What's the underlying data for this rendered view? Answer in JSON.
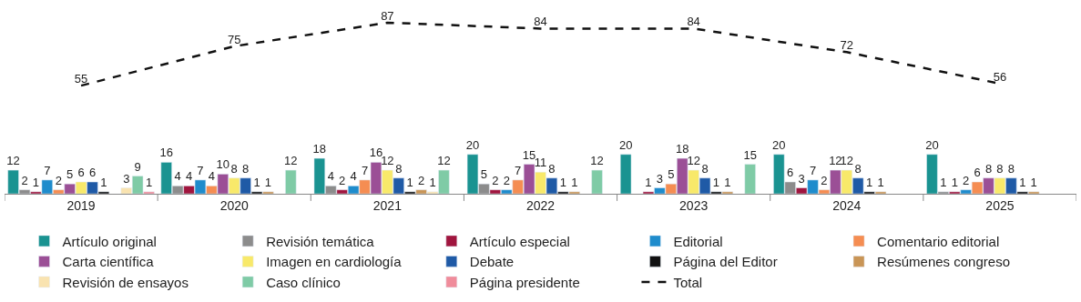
{
  "chart_data": {
    "type": "bar",
    "categories": [
      "2019",
      "2020",
      "2021",
      "2022",
      "2023",
      "2024",
      "2025"
    ],
    "tick_labels": "x",
    "data_labels": true,
    "legend": "bottom",
    "series": [
      {
        "name": "Artículo original",
        "color": "#1a9391",
        "values": [
          12,
          16,
          18,
          20,
          20,
          20,
          20
        ]
      },
      {
        "name": "Revisión temática",
        "color": "#8c8c8c",
        "values": [
          2,
          4,
          4,
          5,
          null,
          6,
          1
        ]
      },
      {
        "name": "Artículo especial",
        "color": "#a0153e",
        "values": [
          1,
          4,
          2,
          2,
          1,
          3,
          1
        ]
      },
      {
        "name": "Editorial",
        "color": "#1f8ccc",
        "values": [
          7,
          7,
          4,
          2,
          3,
          7,
          2
        ]
      },
      {
        "name": "Comentario editorial",
        "color": "#f58d52",
        "values": [
          2,
          4,
          7,
          7,
          5,
          2,
          6
        ]
      },
      {
        "name": "Carta científica",
        "color": "#9b4f96",
        "values": [
          5,
          10,
          16,
          15,
          18,
          12,
          8
        ]
      },
      {
        "name": "Imagen en cardiología",
        "color": "#f8e96a",
        "values": [
          6,
          8,
          12,
          11,
          12,
          12,
          8
        ]
      },
      {
        "name": "Debate",
        "color": "#1f5aa6",
        "values": [
          6,
          8,
          8,
          8,
          8,
          8,
          8
        ]
      },
      {
        "name": "Página del Editor",
        "color": "#111111",
        "values": [
          1,
          1,
          1,
          1,
          1,
          1,
          1
        ]
      },
      {
        "name": "Resúmenes congreso",
        "color": "#c99556",
        "values": [
          null,
          1,
          2,
          1,
          1,
          1,
          1
        ]
      },
      {
        "name": "Revisión de ensayos",
        "color": "#f9e3b0",
        "values": [
          3,
          null,
          1,
          null,
          null,
          null,
          null
        ]
      },
      {
        "name": "Caso clínico",
        "color": "#7fcba6",
        "values": [
          9,
          12,
          12,
          12,
          15,
          null,
          null
        ]
      },
      {
        "name": "Página presidente",
        "color": "#f08c9b",
        "values": [
          1,
          null,
          null,
          null,
          null,
          null,
          null
        ]
      },
      {
        "name": "Total",
        "type": "line",
        "color": "#111111",
        "line_style": "dashed",
        "marker": "none",
        "values": [
          55,
          75,
          87,
          84,
          84,
          72,
          56
        ]
      }
    ]
  }
}
